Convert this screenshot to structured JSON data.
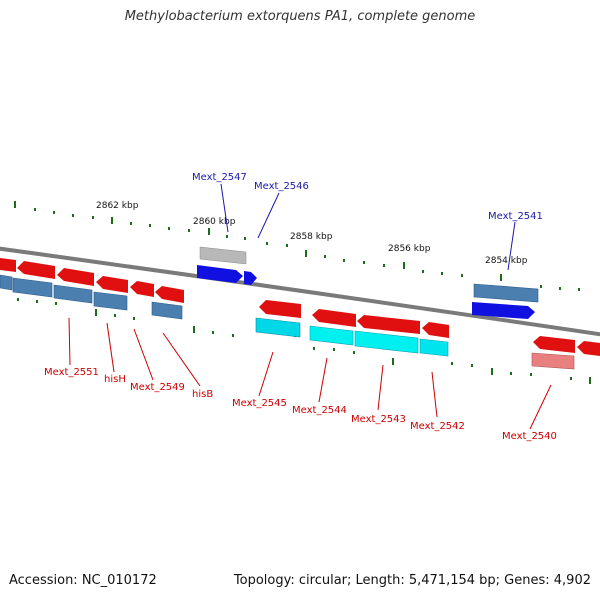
{
  "title": "Methylobacterium extorquens PA1, complete genome",
  "footer": {
    "accession": "Accession: NC_010172",
    "summary": "Topology: circular; Length: 5,471,154 bp; Genes: 4,902"
  },
  "scale_labels": [
    "2862 kbp",
    "2860 kbp",
    "2858 kbp",
    "2856 kbp",
    "2854 kbp"
  ],
  "colors": {
    "backbone": "#808080",
    "forward_gene": "#1010e0",
    "reverse_gene": "#e01010",
    "cds_steel": "#4a7fb0",
    "cds_cyan": "#00d8e8",
    "pseudo_grey": "#b8b8b8",
    "pseudo_pink": "#e88080",
    "tick": "#1a6e1a",
    "label_red": "#cc0000",
    "label_blue": "#1a1aaa"
  },
  "gene_labels": {
    "mext_2551": "Mext_2551",
    "hish": "hisH",
    "mext_2549": "Mext_2549",
    "hisb": "hisB",
    "mext_2547": "Mext_2547",
    "mext_2546": "Mext_2546",
    "mext_2545": "Mext_2545",
    "mext_2544": "Mext_2544",
    "mext_2543": "Mext_2543",
    "mext_2542": "Mext_2542",
    "mext_2541": "Mext_2541",
    "mext_2540": "Mext_2540"
  }
}
